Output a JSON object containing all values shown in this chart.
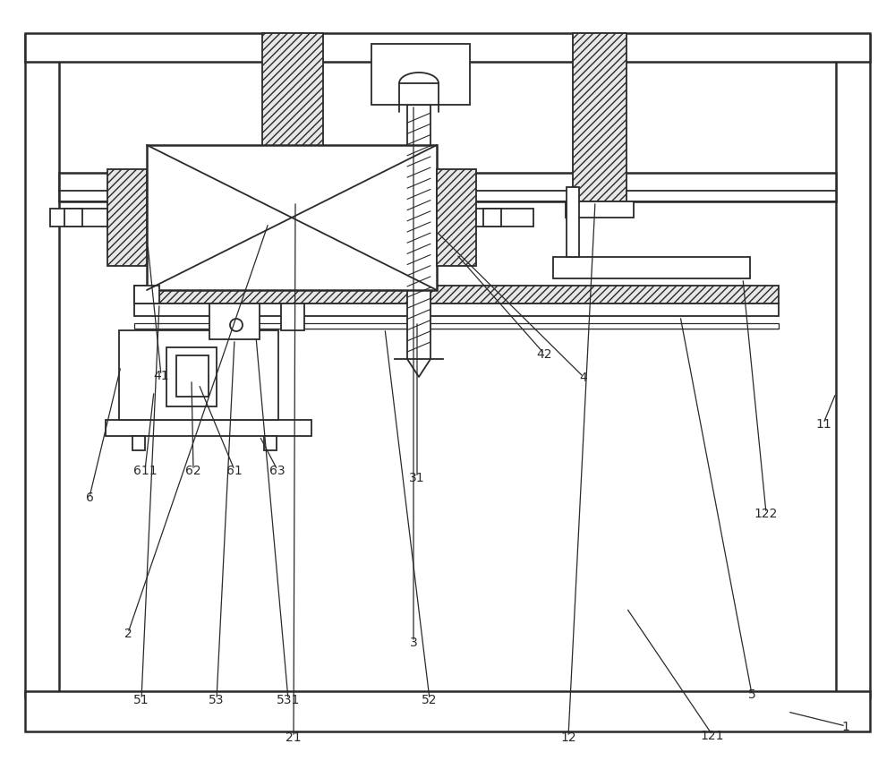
{
  "bg_color": "#ffffff",
  "line_color": "#2a2a2a",
  "fig_width": 10.0,
  "fig_height": 8.7,
  "label_fs": 10
}
